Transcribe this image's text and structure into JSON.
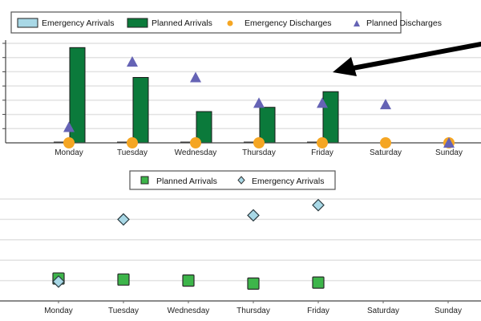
{
  "colors": {
    "emergency_arrivals": "#a8d8e6",
    "planned_arrivals_bar": "#0b7a3b",
    "planned_arrivals_marker": "#3db54a",
    "emergency_discharges": "#f5a623",
    "planned_discharges": "#6563b5",
    "annotation_arrow": "#000000"
  },
  "chart_data": [
    {
      "type": "bar",
      "title": "",
      "xlabel": "",
      "ylabel": "",
      "ylim": [
        0,
        7
      ],
      "grid": true,
      "legend": "top",
      "categories": [
        "Monday",
        "Tuesday",
        "Wednesday",
        "Thursday",
        "Friday",
        "Saturday",
        "Sunday"
      ],
      "series": [
        {
          "name": "Emergency Arrivals",
          "kind": "bar",
          "values": [
            0,
            0,
            0,
            0,
            0,
            0,
            0
          ]
        },
        {
          "name": "Planned Arrivals",
          "kind": "bar",
          "values": [
            6.7,
            4.6,
            2.2,
            2.5,
            3.6,
            0,
            0
          ]
        },
        {
          "name": "Emergency Discharges",
          "kind": "marker-circle",
          "values": [
            0,
            0,
            0,
            0,
            0,
            0,
            0
          ]
        },
        {
          "name": "Planned Discharges",
          "kind": "marker-triangle",
          "values": [
            1.1,
            5.7,
            4.6,
            2.8,
            2.8,
            2.7,
            0
          ]
        }
      ],
      "annotation": {
        "type": "arrow",
        "direction": "pointing left toward plot area"
      }
    },
    {
      "type": "scatter",
      "title": "",
      "xlabel": "",
      "ylabel": "",
      "ylim": [
        0,
        5
      ],
      "grid": true,
      "legend": "top-center",
      "categories": [
        "Monday",
        "Tuesday",
        "Wednesday",
        "Thursday",
        "Friday",
        "Saturday",
        "Sunday"
      ],
      "series": [
        {
          "name": "Planned Arrivals",
          "kind": "marker-square",
          "values": [
            1.1,
            1.05,
            1.0,
            0.85,
            0.9,
            null,
            null
          ]
        },
        {
          "name": "Emergency Arrivals",
          "kind": "marker-diamond",
          "values": [
            0.95,
            4.0,
            null,
            4.2,
            4.7,
            null,
            null
          ]
        }
      ]
    }
  ]
}
